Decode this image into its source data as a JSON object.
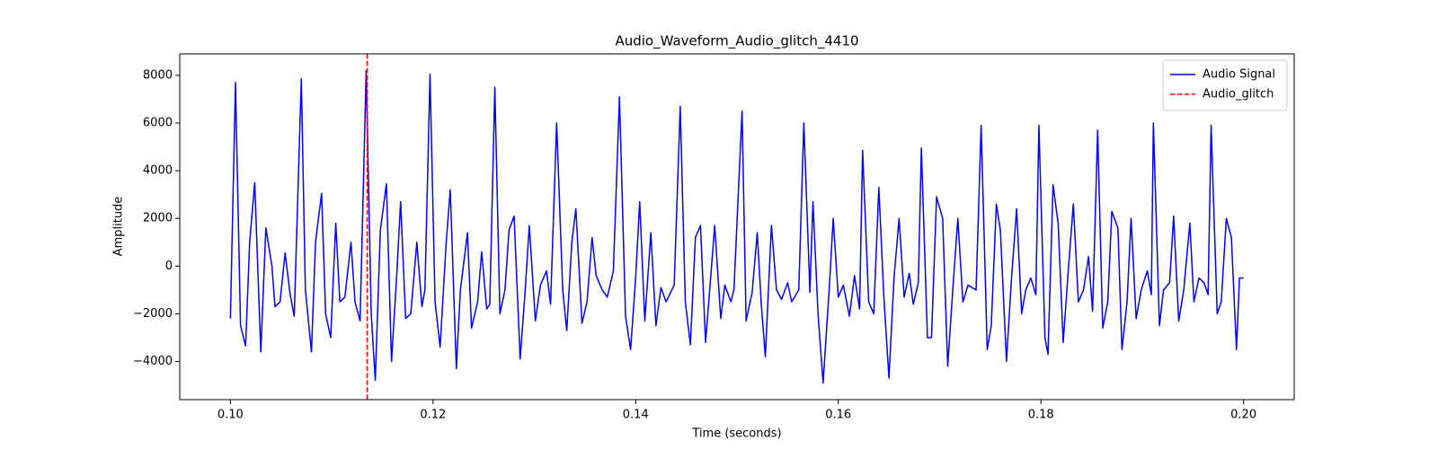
{
  "chart_data": {
    "type": "line",
    "title": "Audio_Waveform_Audio_glitch_4410",
    "x_label": "Time (seconds)",
    "y_label": "Amplitude",
    "xlim": [
      0.095,
      0.205
    ],
    "ylim": [
      -5600,
      8900
    ],
    "xticks": [
      {
        "value": 0.1,
        "label": "0.10"
      },
      0.12,
      0.14,
      0.16,
      0.18,
      {
        "value": 0.2,
        "label": "0.20"
      }
    ],
    "yticks": [
      {
        "value": -4000,
        "label": "−4000"
      },
      {
        "value": -2000,
        "label": "−2000"
      },
      0,
      2000,
      4000,
      6000,
      8000
    ],
    "grid": false,
    "legend": "upper right",
    "x": [
      0.1,
      0.1005,
      0.101,
      0.1015,
      0.1019,
      0.1024,
      0.103,
      0.1035,
      0.1041,
      0.1044,
      0.1049,
      0.1054,
      0.1059,
      0.1063,
      0.107,
      0.1074,
      0.108,
      0.1084,
      0.109,
      0.1094,
      0.1099,
      0.1104,
      0.1108,
      0.1113,
      0.1119,
      0.1123,
      0.1128,
      0.1134,
      0.1139,
      0.1143,
      0.1148,
      0.1154,
      0.1159,
      0.1164,
      0.1168,
      0.1173,
      0.1178,
      0.1184,
      0.1189,
      0.1192,
      0.1197,
      0.1202,
      0.1207,
      0.1213,
      0.1217,
      0.1223,
      0.1227,
      0.1234,
      0.1238,
      0.1244,
      0.1248,
      0.1253,
      0.1256,
      0.1261,
      0.1266,
      0.1271,
      0.1275,
      0.128,
      0.1286,
      0.1291,
      0.1295,
      0.1301,
      0.1306,
      0.1312,
      0.1316,
      0.1322,
      0.1328,
      0.1332,
      0.1337,
      0.1341,
      0.1347,
      0.1352,
      0.1357,
      0.1361,
      0.1367,
      0.1372,
      0.1378,
      0.1384,
      0.139,
      0.1395,
      0.14,
      0.1404,
      0.1409,
      0.1415,
      0.142,
      0.1425,
      0.143,
      0.1438,
      0.1444,
      0.1449,
      0.1454,
      0.1459,
      0.1464,
      0.1469,
      0.1474,
      0.1478,
      0.1484,
      0.1488,
      0.1494,
      0.1497,
      0.1505,
      0.1509,
      0.1515,
      0.152,
      0.1524,
      0.1528,
      0.1534,
      0.1539,
      0.1544,
      0.155,
      0.1554,
      0.1561,
      0.1566,
      0.1572,
      0.1575,
      0.158,
      0.1585,
      0.1591,
      0.1595,
      0.16,
      0.1605,
      0.1611,
      0.1616,
      0.1621,
      0.1624,
      0.163,
      0.1635,
      0.164,
      0.1645,
      0.165,
      0.1655,
      0.166,
      0.1665,
      0.167,
      0.1674,
      0.1679,
      0.1682,
      0.1688,
      0.1692,
      0.1697,
      0.1703,
      0.1708,
      0.1713,
      0.1718,
      0.1723,
      0.1728,
      0.1736,
      0.1741,
      0.1747,
      0.1751,
      0.1756,
      0.176,
      0.1766,
      0.1771,
      0.1776,
      0.1781,
      0.1785,
      0.179,
      0.1795,
      0.1798,
      0.1804,
      0.1807,
      0.1812,
      0.1817,
      0.1822,
      0.1827,
      0.1832,
      0.1837,
      0.1842,
      0.1847,
      0.1851,
      0.1856,
      0.1861,
      0.1866,
      0.187,
      0.1876,
      0.188,
      0.1885,
      0.1889,
      0.1894,
      0.1899,
      0.1905,
      0.1909,
      0.1911,
      0.1917,
      0.1921,
      0.1927,
      0.1931,
      0.1936,
      0.1941,
      0.1947,
      0.1951,
      0.1956,
      0.1961,
      0.1965,
      0.1968,
      0.1974,
      0.1978,
      0.1983,
      0.1988,
      0.1993,
      0.1996,
      0.2
    ],
    "series": [
      {
        "name": "Audio Signal",
        "color": "#0000ff",
        "values": [
          -2200,
          7700,
          -2500,
          -3350,
          1000,
          3500,
          -3600,
          1600,
          0,
          -1700,
          -1500,
          550,
          -1200,
          -2100,
          7850,
          -1000,
          -3600,
          1000,
          3050,
          -2000,
          -3000,
          1800,
          -1500,
          -1300,
          1000,
          -1500,
          -2300,
          8200,
          -2000,
          -4800,
          1500,
          3450,
          -4000,
          -500,
          2700,
          -2200,
          -2000,
          1000,
          -1700,
          -1000,
          8050,
          -1500,
          -3400,
          1000,
          3200,
          -4300,
          -1000,
          1400,
          -2600,
          -1500,
          600,
          -1800,
          -1600,
          7500,
          -2000,
          -1000,
          1500,
          2100,
          -3900,
          -1000,
          1700,
          -2300,
          -800,
          -200,
          -1600,
          6000,
          -1000,
          -2700,
          1000,
          2400,
          -2400,
          -1500,
          1200,
          -400,
          -1000,
          -1300,
          -200,
          7100,
          -2100,
          -3500,
          -500,
          2700,
          -2300,
          1400,
          -2500,
          -900,
          -1500,
          -800,
          6700,
          -1500,
          -3300,
          1200,
          1700,
          -3200,
          -500,
          1700,
          -2200,
          -800,
          -1500,
          -1000,
          6500,
          -2300,
          -1100,
          1400,
          -1600,
          -3800,
          1700,
          -1000,
          -1400,
          -700,
          -1500,
          -1000,
          6000,
          -1100,
          2700,
          -2000,
          -4900,
          -1000,
          2000,
          -1300,
          -800,
          -2100,
          -400,
          -1800,
          4850,
          -1500,
          -2000,
          3300,
          -1300,
          -4700,
          -500,
          2000,
          -1300,
          -300,
          -1600,
          -700,
          4950,
          -3000,
          -3000,
          2900,
          2000,
          -4200,
          -1000,
          2000,
          -1500,
          -800,
          -1000,
          5900,
          -3500,
          -2500,
          2600,
          1500,
          -4000,
          -500,
          2400,
          -2000,
          -1000,
          -500,
          -1200,
          5900,
          -3000,
          -3700,
          3400,
          1800,
          -3200,
          -200,
          2600,
          -1500,
          -1000,
          400,
          -1900,
          5700,
          -2600,
          -1500,
          2300,
          1600,
          -3500,
          -1500,
          2000,
          -2200,
          -1000,
          -200,
          -1200,
          6000,
          -2500,
          -1000,
          -700,
          2100,
          -2300,
          -1000,
          1800,
          -1500,
          -500,
          -700,
          -1200,
          5900,
          -2000,
          -1500,
          2000,
          1200,
          -3500,
          -500,
          -500
        ]
      }
    ],
    "markers": [
      {
        "name": "Audio_glitch",
        "color": "#ff0000",
        "x": 0.1135
      }
    ]
  }
}
